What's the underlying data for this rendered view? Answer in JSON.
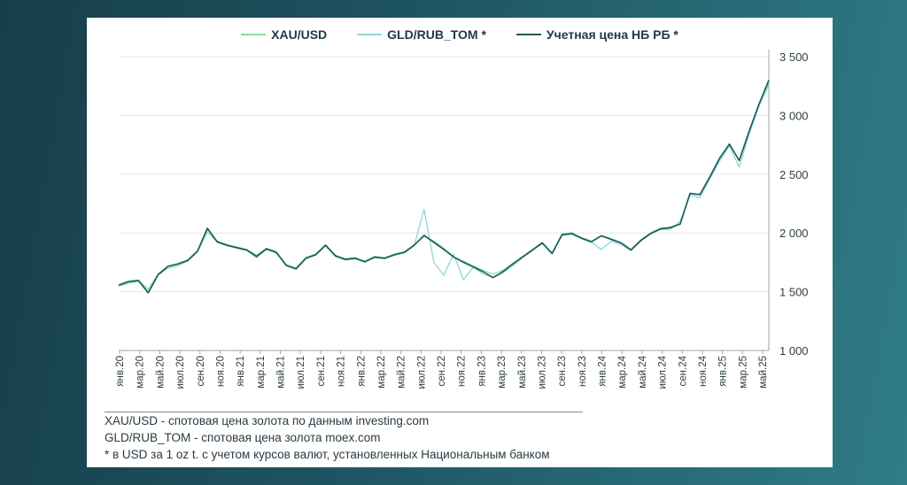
{
  "chart_data": {
    "type": "line",
    "title": "",
    "xlabel": "",
    "ylabel": "",
    "ylim": [
      1000,
      3500
    ],
    "yticks": [
      1000,
      1500,
      2000,
      2500,
      3000,
      3500
    ],
    "ytick_labels": [
      "1 000",
      "1 500",
      "2 000",
      "2 500",
      "3 000",
      "3 500"
    ],
    "xtick_labels": [
      "янв.20",
      "мар.20",
      "май.20",
      "июл.20",
      "сен.20",
      "ноя.20",
      "янв.21",
      "мар.21",
      "май.21",
      "июл.21",
      "сен.21",
      "ноя.21",
      "янв.22",
      "мар.22",
      "май.22",
      "июл.22",
      "сен.22",
      "ноя.22",
      "янв.23",
      "мар.23",
      "май.23",
      "июл.23",
      "сен.23",
      "ноя.23",
      "янв.24",
      "мар.24",
      "май.24",
      "июл.24",
      "сен.24",
      "ноя.24",
      "янв.25",
      "мар.25",
      "май.25"
    ],
    "x": [
      0,
      1,
      2,
      3,
      4,
      5,
      6,
      7,
      8,
      9,
      10,
      11,
      12,
      13,
      14,
      15,
      16,
      17,
      18,
      19,
      20,
      21,
      22,
      23,
      24,
      25,
      26,
      27,
      28,
      29,
      30,
      31,
      32,
      33,
      34,
      35,
      36,
      37,
      38,
      39,
      40,
      41,
      42,
      43,
      44,
      45,
      46,
      47,
      48,
      49,
      50,
      51,
      52,
      53,
      54,
      55,
      56,
      57,
      58,
      59,
      60,
      61,
      62,
      63,
      64,
      65,
      66
    ],
    "series": [
      {
        "name": "XAU/USD",
        "color": "#7fe0a0",
        "values": [
          1560,
          1590,
          1600,
          1520,
          1650,
          1720,
          1740,
          1770,
          1850,
          2030,
          1930,
          1900,
          1880,
          1860,
          1810,
          1870,
          1840,
          1730,
          1700,
          1790,
          1820,
          1900,
          1810,
          1780,
          1790,
          1760,
          1800,
          1790,
          1820,
          1840,
          1900,
          1970,
          1930,
          1870,
          1800,
          1760,
          1720,
          1680,
          1650,
          1680,
          1740,
          1800,
          1860,
          1920,
          1830,
          1990,
          2000,
          1960,
          1930,
          1980,
          1950,
          1920,
          1860,
          1940,
          2000,
          2040,
          2050,
          2080,
          2340,
          2330,
          2480,
          2640,
          2760,
          2620,
          2870,
          3100,
          3280
        ]
      },
      {
        "name": "GLD/RUB_TOM *",
        "color": "#8fd6d6",
        "values": [
          1550,
          1570,
          1590,
          1500,
          1640,
          1700,
          1720,
          1760,
          1840,
          2010,
          1920,
          1890,
          1870,
          1850,
          1790,
          1860,
          1830,
          1720,
          1690,
          1780,
          1810,
          1890,
          1800,
          1770,
          1780,
          1750,
          1790,
          1780,
          1810,
          1830,
          1890,
          2200,
          1750,
          1640,
          1820,
          1600,
          1710,
          1650,
          1620,
          1660,
          1720,
          1790,
          1850,
          1910,
          1820,
          1980,
          1990,
          1950,
          1920,
          1860,
          1930,
          1900,
          1850,
          1930,
          1990,
          2030,
          2030,
          2100,
          2320,
          2300,
          2460,
          2610,
          2740,
          2560,
          2840,
          3080,
          3260
        ]
      },
      {
        "name": "Учетная цена НБ РБ *",
        "color": "#1d5a5a",
        "values": [
          1555,
          1585,
          1595,
          1490,
          1645,
          1715,
          1735,
          1765,
          1845,
          2040,
          1925,
          1895,
          1875,
          1855,
          1800,
          1865,
          1835,
          1725,
          1695,
          1785,
          1815,
          1895,
          1805,
          1775,
          1785,
          1755,
          1795,
          1785,
          1815,
          1835,
          1895,
          1980,
          1920,
          1860,
          1795,
          1750,
          1710,
          1670,
          1620,
          1670,
          1735,
          1795,
          1855,
          1915,
          1825,
          1985,
          1995,
          1955,
          1925,
          1975,
          1945,
          1915,
          1855,
          1935,
          1995,
          2035,
          2045,
          2075,
          2335,
          2325,
          2475,
          2635,
          2755,
          2615,
          2865,
          3095,
          3300
        ]
      }
    ]
  },
  "notes": {
    "line1": "XAU/USD - спотовая цена золота по данным investing.com",
    "line2": "GLD/RUB_TOM - спотовая цена золота moex.com",
    "line3": "* в USD  за 1 oz t. с учетом курсов валют, установленных Национальным банком"
  }
}
